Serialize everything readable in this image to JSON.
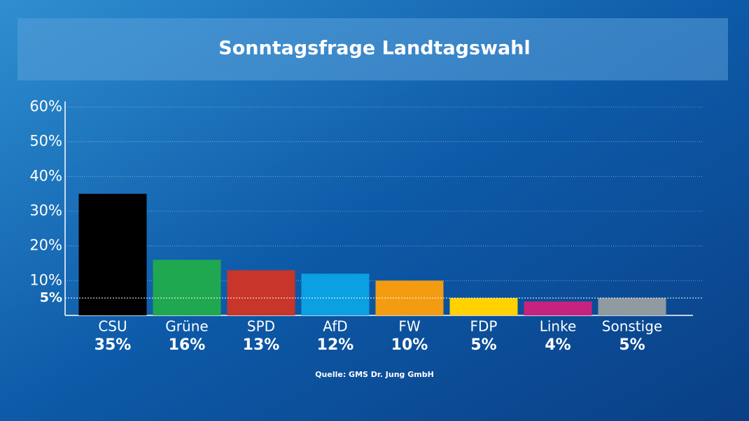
{
  "chart_data": {
    "type": "bar",
    "title": "Sonntagsfrage Landtagswahl",
    "categories": [
      "CSU",
      "Grüne",
      "SPD",
      "AfD",
      "FW",
      "FDP",
      "Linke",
      "Sonstige"
    ],
    "values": [
      35,
      16,
      13,
      12,
      10,
      5,
      4,
      5
    ],
    "value_labels": [
      "35%",
      "16%",
      "13%",
      "12%",
      "10%",
      "5%",
      "4%",
      "5%"
    ],
    "colors": [
      "#000000",
      "#1fa84f",
      "#c8352a",
      "#0aa0e2",
      "#f39c12",
      "#ffd200",
      "#c6237f",
      "#8f9ba0"
    ],
    "ylim": [
      0,
      60
    ],
    "yticks": [
      {
        "value": 10,
        "label": "10%"
      },
      {
        "value": 20,
        "label": "20%"
      },
      {
        "value": 30,
        "label": "30%"
      },
      {
        "value": 40,
        "label": "40%"
      },
      {
        "value": 50,
        "label": "50%"
      },
      {
        "value": 60,
        "label": "60%"
      }
    ],
    "reference_line": {
      "value": 5,
      "label": "5%"
    },
    "grid": true,
    "source": "Quelle: GMS Dr. Jung GmbH"
  }
}
